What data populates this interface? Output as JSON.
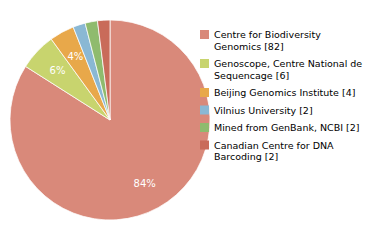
{
  "chart_data": {
    "type": "pie",
    "categories": [
      "Centre for Biodiversity\nGenomics [82]",
      "Genoscope, Centre National de\nSequencage [6]",
      "Beijing Genomics Institute [4]",
      "Vilnius University [2]",
      "Mined from GenBank, NCBI [2]",
      "Canadian Centre for DNA\nBarcoding [2]"
    ],
    "values": [
      84,
      6,
      4,
      2,
      2,
      2
    ],
    "value_labels": [
      "84%",
      "6%",
      "4%",
      null,
      null,
      null
    ],
    "data_labels": true,
    "colors": [
      "#d9897a",
      "#c8d46e",
      "#e8a84a",
      "#8ab8d4",
      "#8fbb6e",
      "#c96b5a"
    ]
  }
}
